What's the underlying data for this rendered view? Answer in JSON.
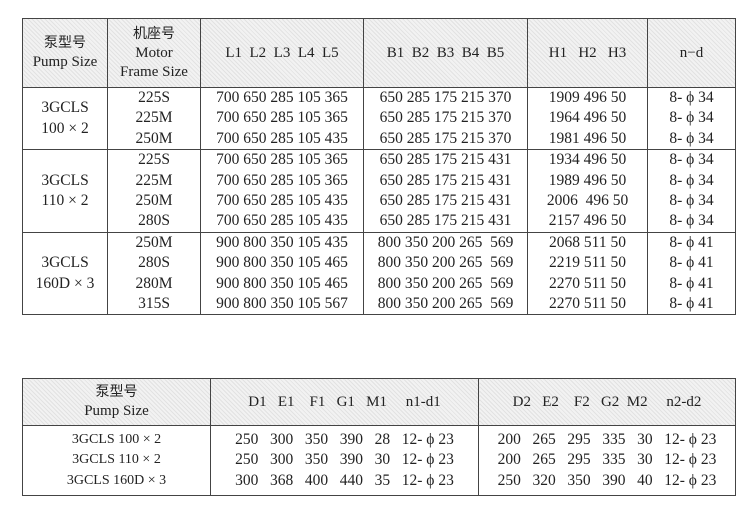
{
  "table1": {
    "headers": {
      "pump_cn": "泵型号",
      "pump_en": "Pump Size",
      "motor_cn": "机座号",
      "motor_en1": "Motor",
      "motor_en2": "Frame Size",
      "L": "L1  L2  L3  L4  L5",
      "B": "B1  B2  B3  B4  B5",
      "H": "H1   H2   H3",
      "nd": "n−d"
    },
    "groups": [
      {
        "pump1": "3GCLS",
        "pump2": "100 × 2",
        "rows": [
          {
            "motor": "225S",
            "L": "700 650 285 105 365",
            "B": "650 285 175 215 370",
            "H": "1909 496 50",
            "nd": "8- ϕ 34"
          },
          {
            "motor": "225M",
            "L": "700 650 285 105 365",
            "B": "650 285 175 215 370",
            "H": "1964 496 50",
            "nd": "8- ϕ 34"
          },
          {
            "motor": "250M",
            "L": "700 650 285 105 435",
            "B": "650 285 175 215 370",
            "H": "1981 496 50",
            "nd": "8- ϕ 34"
          }
        ]
      },
      {
        "pump1": "3GCLS",
        "pump2": "110 × 2",
        "rows": [
          {
            "motor": "225S",
            "L": "700 650 285 105 365",
            "B": "650 285 175 215 431",
            "H": "1934 496 50",
            "nd": "8- ϕ 34"
          },
          {
            "motor": "225M",
            "L": "700 650 285 105 365",
            "B": "650 285 175 215 431",
            "H": "1989 496 50",
            "nd": "8- ϕ 34"
          },
          {
            "motor": "250M",
            "L": "700 650 285 105 435",
            "B": "650 285 175 215 431",
            "H": "2006  496 50",
            "nd": "8- ϕ 34"
          },
          {
            "motor": "280S",
            "L": "700 650 285 105 435",
            "B": "650 285 175 215 431",
            "H": "2157 496 50",
            "nd": "8- ϕ 34"
          }
        ]
      },
      {
        "pump1": "3GCLS",
        "pump2": "160D × 3",
        "rows": [
          {
            "motor": "250M",
            "L": "900 800 350 105 435",
            "B": "800 350 200 265  569",
            "H": "2068 511 50",
            "nd": "8- ϕ 41"
          },
          {
            "motor": "280S",
            "L": "900 800 350 105 465",
            "B": "800 350 200 265  569",
            "H": "2219 511 50",
            "nd": "8- ϕ 41"
          },
          {
            "motor": "280M",
            "L": "900 800 350 105 465",
            "B": "800 350 200 265  569",
            "H": "2270 511 50",
            "nd": "8- ϕ 41"
          },
          {
            "motor": "315S",
            "L": "900 800 350 105 567",
            "B": "800 350 200 265  569",
            "H": "2270 511 50",
            "nd": "8- ϕ 41"
          }
        ]
      }
    ]
  },
  "table2": {
    "headers": {
      "pump_cn": "泵型号",
      "pump_en": "Pump Size",
      "inlet": "D1   E1    F1   G1   M1     n1-d1",
      "outlet": "D2   E2    F2   G2  M2     n2-d2"
    },
    "rows": [
      {
        "pump": "3GCLS 100 × 2",
        "inlet": "250   300   350   390   28   12- ϕ 23",
        "outlet": "200   265   295   335   30   12- ϕ 23"
      },
      {
        "pump": "3GCLS 110 × 2",
        "inlet": "250   300   350   390   30   12- ϕ 23",
        "outlet": "200   265   295   335   30   12- ϕ 23"
      },
      {
        "pump": "3GCLS 160D × 3",
        "inlet": "300   368   400   440   35   12- ϕ 23",
        "outlet": "250   320   350   390   40   12- ϕ 23"
      }
    ]
  }
}
